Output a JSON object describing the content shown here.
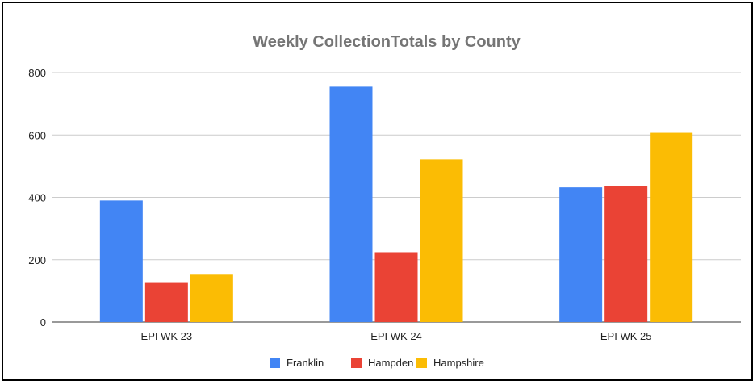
{
  "chart_data": {
    "type": "bar",
    "title": "Weekly CollectionTotals by County",
    "categories": [
      "EPI WK 23",
      "EPI WK 24",
      "EPI WK 25"
    ],
    "series": [
      {
        "name": "Franklin",
        "color": "#4285F4",
        "values": [
          390,
          755,
          432
        ]
      },
      {
        "name": "Hampden",
        "color": "#EA4335",
        "values": [
          128,
          224,
          436
        ]
      },
      {
        "name": "Hampshire",
        "color": "#FBBC04",
        "values": [
          152,
          522,
          607
        ]
      }
    ],
    "ylim": [
      0,
      800
    ],
    "yticks": [
      "0",
      "200",
      "400",
      "600",
      "800"
    ],
    "ytick_values": [
      0,
      200,
      400,
      600,
      800
    ],
    "grid": true,
    "legend_position": "bottom"
  }
}
